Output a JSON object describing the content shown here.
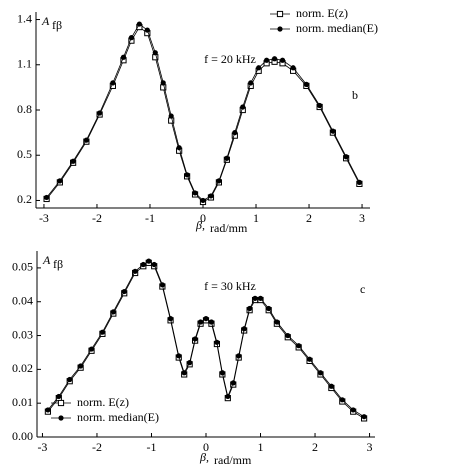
{
  "chart_data": [
    {
      "type": "line",
      "ylabel": "A",
      "ylabel_sub": "fβ",
      "xlabel": "β,",
      "xlabel_unit": "rad/mm",
      "annotation": "f = 20 kHz",
      "panel_label": "b",
      "legend": "upper right",
      "xlim": [
        -3.15,
        3.15
      ],
      "xticks": [
        -3,
        -2,
        -1,
        0,
        1,
        2,
        3
      ],
      "ylim": [
        0.15,
        1.45
      ],
      "yticks": [
        0.2,
        0.5,
        0.8,
        1.1,
        1.4
      ],
      "x": [
        -2.95,
        -2.7,
        -2.45,
        -2.2,
        -1.95,
        -1.7,
        -1.5,
        -1.35,
        -1.2,
        -1.05,
        -0.9,
        -0.75,
        -0.6,
        -0.45,
        -0.3,
        -0.15,
        0,
        0.15,
        0.3,
        0.45,
        0.6,
        0.75,
        0.9,
        1.05,
        1.2,
        1.35,
        1.5,
        1.7,
        1.95,
        2.2,
        2.45,
        2.7,
        2.95
      ],
      "series": [
        {
          "name": "norm. E(z)",
          "color": "#000000",
          "marker": "square-open",
          "values": [
            0.21,
            0.32,
            0.45,
            0.59,
            0.77,
            0.96,
            1.13,
            1.26,
            1.35,
            1.31,
            1.15,
            0.95,
            0.73,
            0.53,
            0.36,
            0.24,
            0.19,
            0.22,
            0.32,
            0.47,
            0.63,
            0.8,
            0.96,
            1.06,
            1.11,
            1.12,
            1.11,
            1.06,
            0.96,
            0.82,
            0.65,
            0.48,
            0.31
          ]
        },
        {
          "name": "norm. median(E)",
          "color": "#000000",
          "marker": "circle",
          "values": [
            0.22,
            0.33,
            0.46,
            0.6,
            0.78,
            0.98,
            1.15,
            1.28,
            1.37,
            1.33,
            1.18,
            0.98,
            0.76,
            0.55,
            0.37,
            0.25,
            0.2,
            0.23,
            0.33,
            0.48,
            0.65,
            0.82,
            0.98,
            1.08,
            1.13,
            1.14,
            1.13,
            1.08,
            0.97,
            0.83,
            0.66,
            0.49,
            0.32
          ]
        }
      ]
    },
    {
      "type": "line",
      "ylabel": "A",
      "ylabel_sub": "fβ",
      "xlabel": "β,",
      "xlabel_unit": "rad/mm",
      "annotation": "f = 30 kHz",
      "panel_label": "c",
      "legend": "lower left",
      "xlim": [
        -3.1,
        3.1
      ],
      "xticks": [
        -3,
        -2,
        -1,
        0,
        1,
        2,
        3
      ],
      "ylim": [
        0,
        0.055
      ],
      "yticks": [
        {
          "value": 0,
          "label": "0.00"
        },
        0.01,
        0.02,
        0.03,
        0.04,
        0.05
      ],
      "x": [
        -2.9,
        -2.7,
        -2.5,
        -2.3,
        -2.1,
        -1.9,
        -1.7,
        -1.5,
        -1.3,
        -1.15,
        -1.05,
        -0.95,
        -0.8,
        -0.65,
        -0.5,
        -0.4,
        -0.3,
        -0.2,
        -0.1,
        0,
        0.1,
        0.2,
        0.3,
        0.4,
        0.5,
        0.6,
        0.7,
        0.8,
        0.9,
        1.0,
        1.15,
        1.3,
        1.5,
        1.7,
        1.9,
        2.1,
        2.3,
        2.5,
        2.7,
        2.9
      ],
      "series": [
        {
          "name": "norm. E(z)",
          "color": "#000000",
          "marker": "square-open",
          "values": [
            0.0075,
            0.0115,
            0.0165,
            0.0205,
            0.0255,
            0.0305,
            0.0365,
            0.0425,
            0.0485,
            0.0505,
            0.0515,
            0.0505,
            0.0445,
            0.0345,
            0.0235,
            0.0185,
            0.0215,
            0.0285,
            0.0335,
            0.0345,
            0.0335,
            0.0275,
            0.0185,
            0.0115,
            0.0155,
            0.0235,
            0.0315,
            0.0375,
            0.0405,
            0.0405,
            0.0375,
            0.0335,
            0.0295,
            0.0265,
            0.0225,
            0.0185,
            0.0145,
            0.0105,
            0.0075,
            0.0055
          ]
        },
        {
          "name": "norm. median(E)",
          "color": "#000000",
          "marker": "circle",
          "values": [
            0.008,
            0.012,
            0.017,
            0.021,
            0.026,
            0.031,
            0.037,
            0.043,
            0.049,
            0.051,
            0.052,
            0.051,
            0.045,
            0.035,
            0.024,
            0.019,
            0.022,
            0.029,
            0.034,
            0.035,
            0.034,
            0.028,
            0.019,
            0.012,
            0.016,
            0.024,
            0.032,
            0.038,
            0.041,
            0.041,
            0.038,
            0.034,
            0.03,
            0.027,
            0.023,
            0.019,
            0.015,
            0.011,
            0.008,
            0.006
          ]
        }
      ]
    }
  ]
}
